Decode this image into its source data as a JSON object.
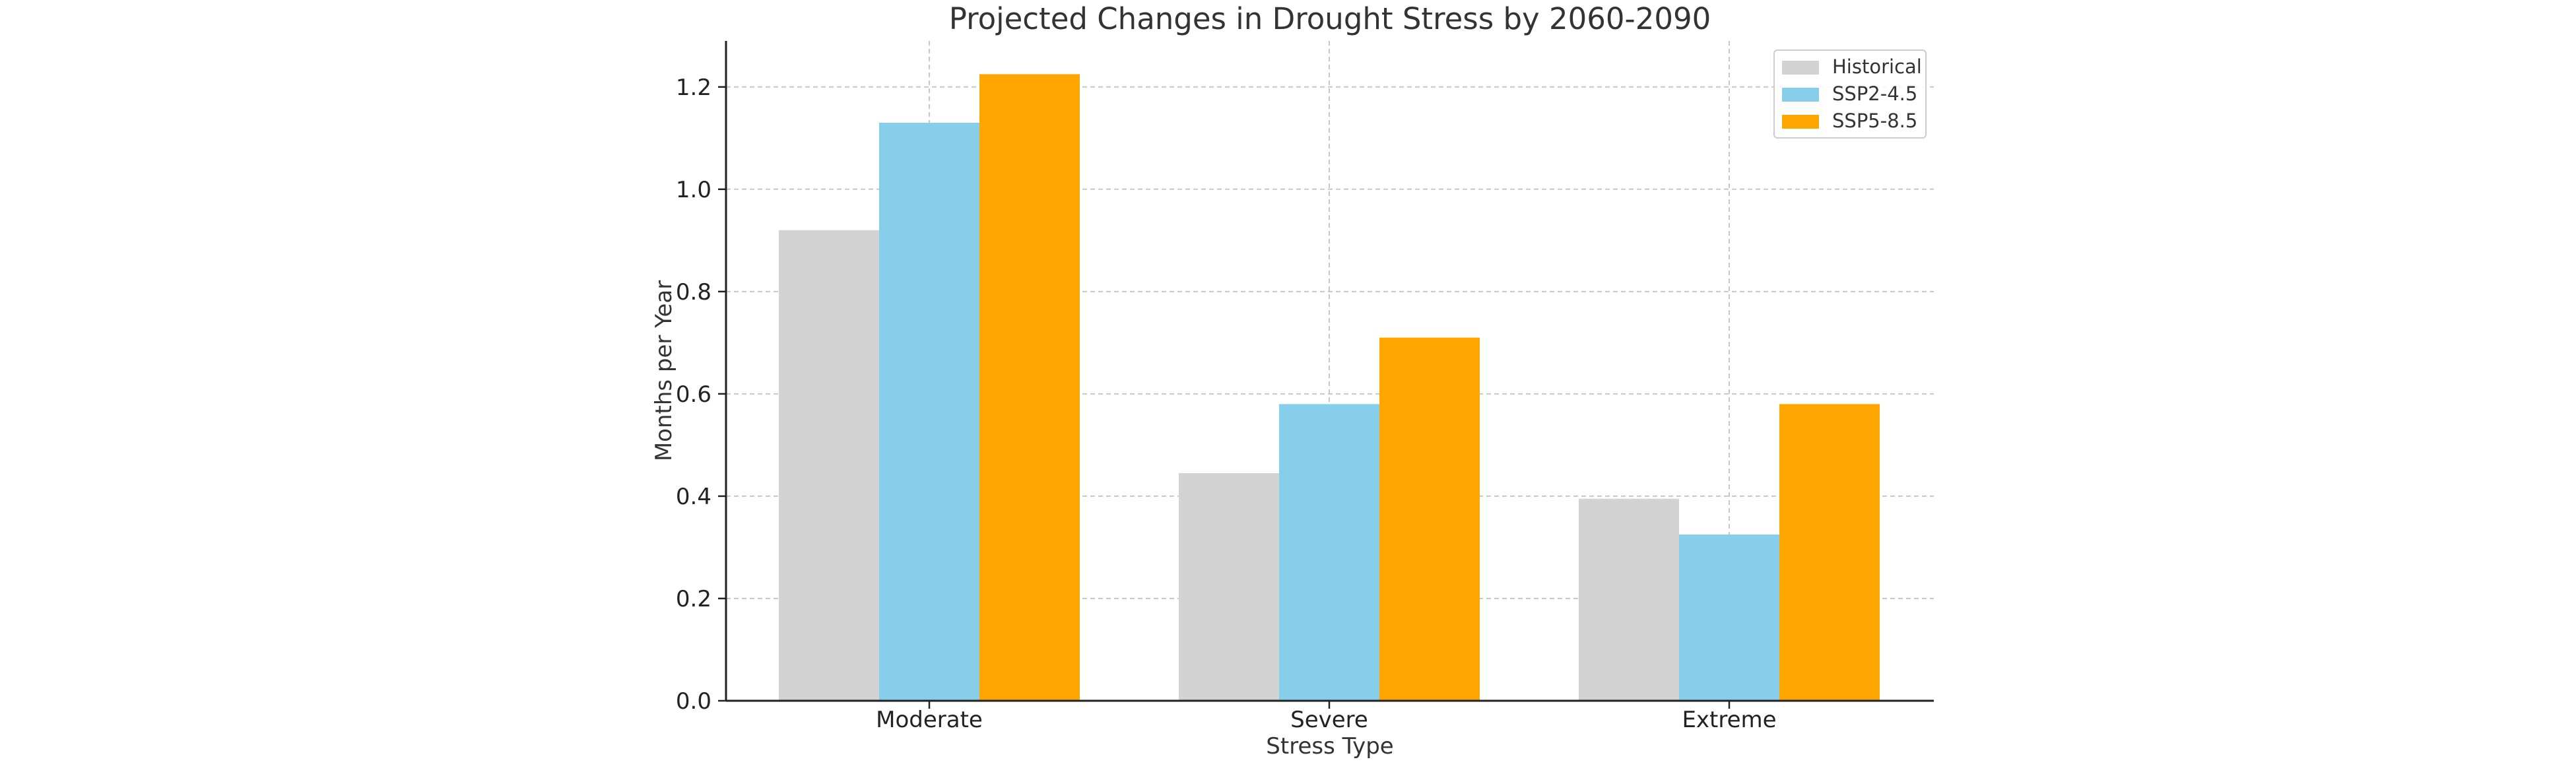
{
  "chart_data": {
    "type": "bar",
    "title": "Projected Changes in Drought Stress by 2060-2090",
    "xlabel": "Stress Type",
    "ylabel": "Months per Year",
    "categories": [
      "Moderate",
      "Severe",
      "Extreme"
    ],
    "series": [
      {
        "name": "Historical",
        "color": "#d3d3d3",
        "values": [
          0.92,
          0.445,
          0.395
        ]
      },
      {
        "name": "SSP2-4.5",
        "color": "#87ceeb",
        "values": [
          1.13,
          0.58,
          0.325
        ]
      },
      {
        "name": "SSP5-8.5",
        "color": "#ffa500",
        "values": [
          1.225,
          0.71,
          0.58
        ]
      }
    ],
    "ylim": [
      0,
      1.29
    ],
    "yticks": [
      "0.0",
      "0.2",
      "0.4",
      "0.6",
      "0.8",
      "1.0",
      "1.2"
    ],
    "grid": true,
    "legend_position": "top-right"
  }
}
